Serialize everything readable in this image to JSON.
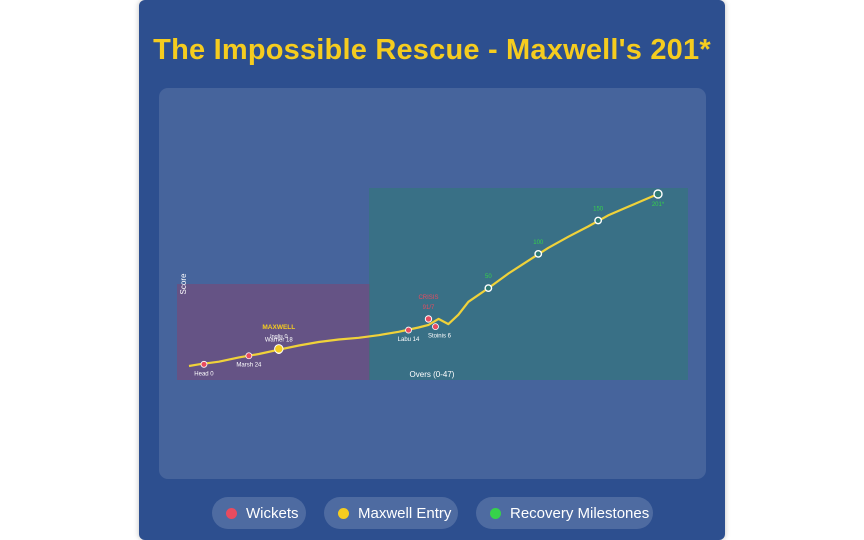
{
  "title": "The Impossible Rescue - Maxwell's 201*",
  "chart_data": {
    "type": "line",
    "x_axis_label": "Overs (0-47)",
    "y_axis_label": "Score",
    "series": [
      {
        "points": [
          [
            0,
            0
          ],
          [
            1,
            2
          ],
          [
            3,
            5
          ],
          [
            5,
            10
          ],
          [
            7,
            14
          ],
          [
            9,
            19
          ],
          [
            11,
            24
          ],
          [
            13,
            28
          ],
          [
            15,
            31
          ],
          [
            17,
            33
          ],
          [
            19,
            36
          ],
          [
            21,
            40
          ],
          [
            23,
            45
          ],
          [
            24,
            48
          ],
          [
            25,
            55
          ],
          [
            26,
            49
          ],
          [
            27,
            60
          ],
          [
            28,
            75
          ],
          [
            30,
            91
          ],
          [
            32,
            108
          ],
          [
            34,
            123
          ],
          [
            36,
            138
          ],
          [
            38,
            151
          ],
          [
            40,
            163
          ],
          [
            42,
            176
          ],
          [
            44,
            186
          ],
          [
            46,
            196
          ],
          [
            47,
            201
          ]
        ]
      }
    ],
    "wickets": [
      {
        "x": 1.5,
        "y": 2,
        "label": "Head 0"
      },
      {
        "x": 6,
        "y": 12,
        "label": "Marsh 24"
      },
      {
        "x": 9,
        "y": 18,
        "label": "Warner 18"
      },
      {
        "x": 22,
        "y": 42,
        "label": "Labu 14"
      },
      {
        "x": 24.7,
        "y": 46,
        "label": "Stoinis 6"
      }
    ],
    "crisis": {
      "x": 24,
      "y": 55,
      "label": "CRISIS",
      "value": "91/7"
    },
    "maxwell_entry": {
      "x": 9,
      "y": 20,
      "label": "MAXWELL",
      "sublabel": "Inglis 0"
    },
    "milestones": [
      {
        "x": 30,
        "y": 91,
        "label": "50"
      },
      {
        "x": 35,
        "y": 131,
        "label": "100"
      },
      {
        "x": 41,
        "y": 170,
        "label": "150"
      },
      {
        "x": 47,
        "y": 201,
        "label": "201*"
      }
    ],
    "regions": [
      {
        "name": "collapse",
        "color": "#8b3f6a"
      },
      {
        "name": "recovery",
        "color": "#2f7a74"
      }
    ],
    "line_color": "#f0d23a",
    "wicket_color": "#e84b5f",
    "milestone_color": "#36d24a",
    "grid": false
  },
  "legend": [
    {
      "label": "Wickets",
      "color": "#e84b5f"
    },
    {
      "label": "Maxwell Entry",
      "color": "#f5cc1f"
    },
    {
      "label": "Recovery Milestones",
      "color": "#36d24a"
    }
  ]
}
